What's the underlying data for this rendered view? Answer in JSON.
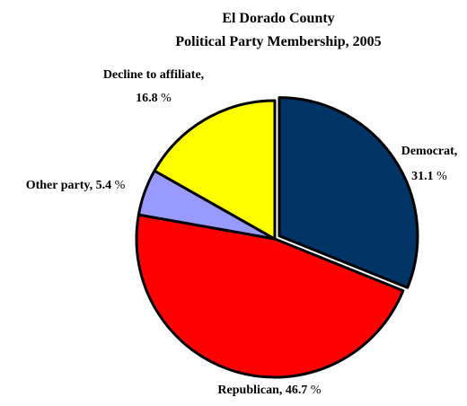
{
  "chart_data": {
    "type": "pie",
    "title": [
      "El Dorado County",
      "Political Party Membership, 2005"
    ],
    "slices": [
      {
        "name": "Democrat,",
        "value": 31.1,
        "label": "31.1",
        "color": "#003366"
      },
      {
        "name": "Republican,",
        "value": 46.7,
        "label": "46.7",
        "color": "#ff0000"
      },
      {
        "name": "Other party,",
        "value": 5.4,
        "label": "5.4",
        "color": "#9999ff"
      },
      {
        "name": "Decline to affiliate,",
        "value": 16.8,
        "label": "16.8",
        "color": "#ffff00"
      }
    ],
    "unit": "%",
    "explode": "Democrat"
  }
}
